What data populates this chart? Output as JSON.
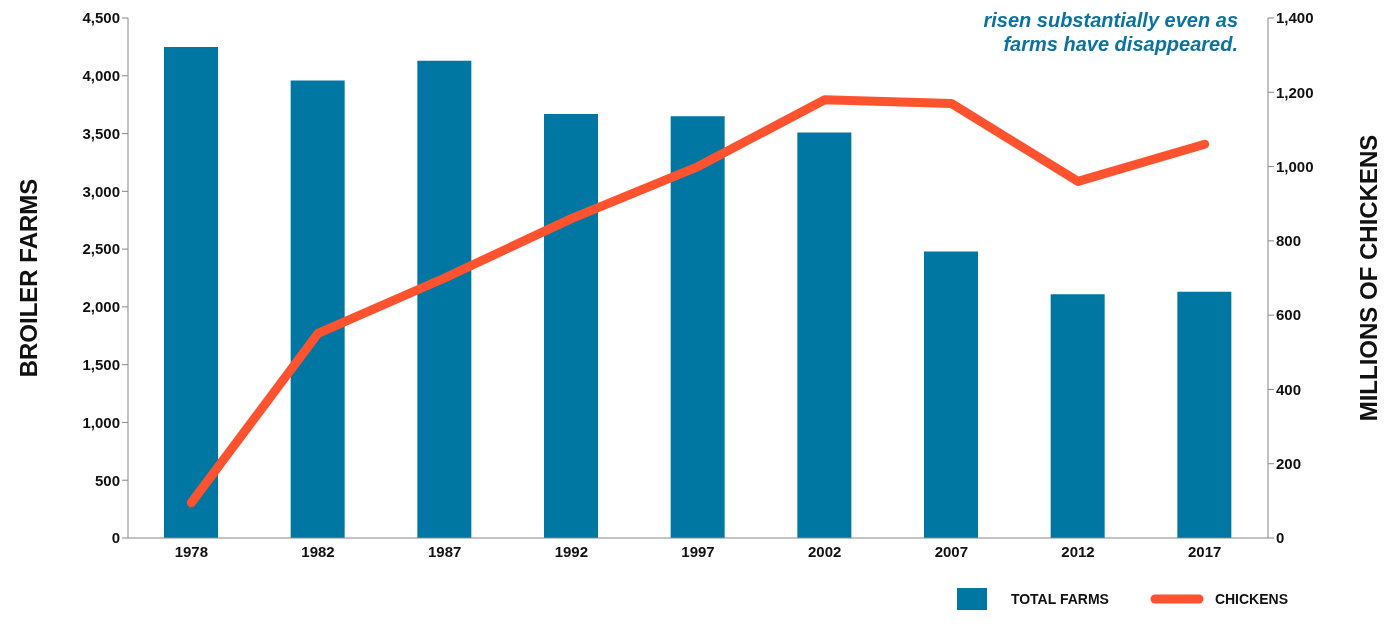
{
  "chart_data": {
    "type": "bar",
    "categories": [
      "1978",
      "1982",
      "1987",
      "1992",
      "1997",
      "2002",
      "2007",
      "2012",
      "2017"
    ],
    "series": [
      {
        "name": "TOTAL FARMS",
        "color": "#0077a3",
        "values": [
          4250,
          3960,
          4130,
          3670,
          3650,
          3510,
          2480,
          2110,
          2130
        ]
      },
      {
        "name": "CHICKENS",
        "type": "line",
        "axis": "y2",
        "color": "#ff5330",
        "values": [
          95,
          551,
          700,
          860,
          1000,
          1180,
          1170,
          960,
          1060
        ]
      }
    ],
    "ylabel": "BROILER FARMS",
    "y2label": "MILLIONS OF CHICKENS",
    "ylim": [
      0,
      4500
    ],
    "yticks": [
      0,
      500,
      {
        "value": 1000,
        "label": "1,000"
      },
      {
        "value": 1500,
        "label": "1,500"
      },
      {
        "value": 2000,
        "label": "2,000"
      },
      {
        "value": 2500,
        "label": "2,500"
      },
      {
        "value": 3000,
        "label": "3,000"
      },
      {
        "value": 3500,
        "label": "3,500"
      },
      {
        "value": 4000,
        "label": "4,000"
      },
      {
        "value": 4500,
        "label": "4,500"
      }
    ],
    "y2lim": [
      0,
      1400
    ],
    "y2ticks": [
      0,
      200,
      400,
      600,
      800,
      {
        "value": 1000,
        "label": "1,000"
      },
      {
        "value": 1200,
        "label": "1,200"
      },
      {
        "value": 1400,
        "label": "1,400"
      }
    ],
    "annotations": [
      "risen substantially even as farms have disappeared."
    ],
    "legend": "bottom right",
    "grid": false,
    "marker": "none",
    "line_style": "solid"
  }
}
